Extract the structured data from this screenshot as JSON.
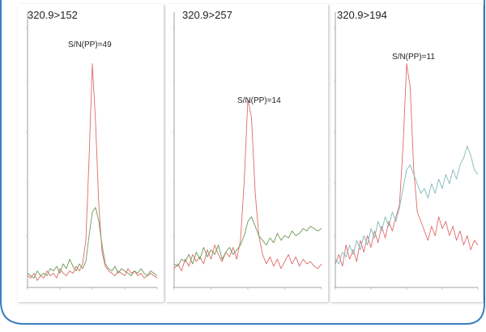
{
  "panels": [
    {
      "title": "320.9>152",
      "snr_label": "S/N(PP)=49",
      "colors": {
        "red": "#e06a6a",
        "green": "#6e9a55"
      }
    },
    {
      "title": "320.9>257",
      "snr_label": "S/N(PP)=14",
      "colors": {
        "red": "#e06a6a",
        "green": "#6e9a55"
      }
    },
    {
      "title": "320.9>194",
      "snr_label": "S/N(PP)=11",
      "colors": {
        "red": "#e06a6a",
        "green": "#7fb8b8"
      }
    }
  ],
  "chart_data": [
    {
      "type": "line",
      "title": "320.9>152",
      "annotation": "S/N(PP)=49",
      "x": [
        0,
        1,
        2,
        3,
        4,
        5,
        6,
        7,
        8,
        9,
        10,
        11,
        12,
        13,
        14,
        15,
        16,
        17,
        18,
        19,
        20,
        21,
        22,
        23,
        24,
        25,
        26,
        27,
        28,
        29,
        30,
        31,
        32,
        33,
        34,
        35,
        36,
        37,
        38,
        39,
        40
      ],
      "series": [
        {
          "color": "red",
          "values": [
            5,
            4,
            6,
            3,
            5,
            4,
            7,
            5,
            6,
            4,
            8,
            6,
            5,
            7,
            6,
            9,
            7,
            10,
            20,
            55,
            95,
            70,
            35,
            15,
            9,
            7,
            6,
            5,
            7,
            6,
            5,
            8,
            6,
            7,
            5,
            6,
            4,
            5,
            6,
            5,
            4
          ]
        },
        {
          "color": "green",
          "values": [
            6,
            5,
            4,
            7,
            5,
            6,
            5,
            8,
            7,
            9,
            6,
            10,
            8,
            12,
            9,
            7,
            10,
            8,
            11,
            22,
            32,
            34,
            28,
            18,
            10,
            8,
            7,
            9,
            6,
            8,
            7,
            6,
            5,
            7,
            6,
            8,
            6,
            5,
            7,
            6,
            5
          ]
        }
      ],
      "ylim": [
        0,
        110
      ]
    },
    {
      "type": "line",
      "title": "320.9>257",
      "annotation": "S/N(PP)=14",
      "x": [
        0,
        1,
        2,
        3,
        4,
        5,
        6,
        7,
        8,
        9,
        10,
        11,
        12,
        13,
        14,
        15,
        16,
        17,
        18,
        19,
        20,
        21,
        22,
        23,
        24,
        25,
        26,
        27,
        28,
        29,
        30,
        31,
        32,
        33,
        34,
        35,
        36,
        37,
        38,
        39,
        40
      ],
      "series": [
        {
          "color": "red",
          "values": [
            8,
            10,
            7,
            12,
            9,
            14,
            11,
            13,
            10,
            16,
            12,
            18,
            14,
            11,
            15,
            13,
            17,
            12,
            20,
            45,
            80,
            72,
            40,
            22,
            14,
            10,
            13,
            9,
            12,
            8,
            11,
            14,
            10,
            13,
            9,
            12,
            10,
            11,
            9,
            8,
            10
          ]
        },
        {
          "color": "green",
          "values": [
            10,
            9,
            12,
            11,
            14,
            10,
            15,
            12,
            17,
            13,
            16,
            14,
            18,
            12,
            15,
            17,
            14,
            16,
            18,
            22,
            28,
            30,
            26,
            22,
            20,
            18,
            21,
            19,
            23,
            20,
            22,
            21,
            24,
            22,
            23,
            25,
            24,
            26,
            25,
            24,
            25
          ]
        }
      ],
      "ylim": [
        0,
        110
      ]
    },
    {
      "type": "line",
      "title": "320.9>194",
      "annotation": "S/N(PP)=11",
      "x": [
        0,
        1,
        2,
        3,
        4,
        5,
        6,
        7,
        8,
        9,
        10,
        11,
        12,
        13,
        14,
        15,
        16,
        17,
        18,
        19,
        20,
        21,
        22,
        23,
        24,
        25,
        26,
        27,
        28,
        29,
        30,
        31,
        32,
        33,
        34,
        35,
        36,
        37,
        38,
        39,
        40
      ],
      "series": [
        {
          "color": "red",
          "values": [
            10,
            14,
            9,
            18,
            12,
            16,
            11,
            20,
            15,
            22,
            17,
            24,
            19,
            26,
            21,
            28,
            24,
            30,
            35,
            60,
            95,
            85,
            50,
            32,
            28,
            24,
            20,
            26,
            22,
            30,
            25,
            28,
            22,
            26,
            20,
            24,
            18,
            22,
            16,
            20,
            18
          ]
        },
        {
          "color": "green",
          "values": [
            12,
            10,
            15,
            13,
            18,
            14,
            20,
            16,
            22,
            18,
            25,
            21,
            28,
            24,
            30,
            26,
            32,
            28,
            34,
            42,
            50,
            52,
            48,
            44,
            40,
            42,
            38,
            44,
            40,
            46,
            42,
            48,
            44,
            50,
            46,
            52,
            55,
            60,
            56,
            50,
            48
          ]
        }
      ],
      "ylim": [
        0,
        110
      ]
    }
  ]
}
